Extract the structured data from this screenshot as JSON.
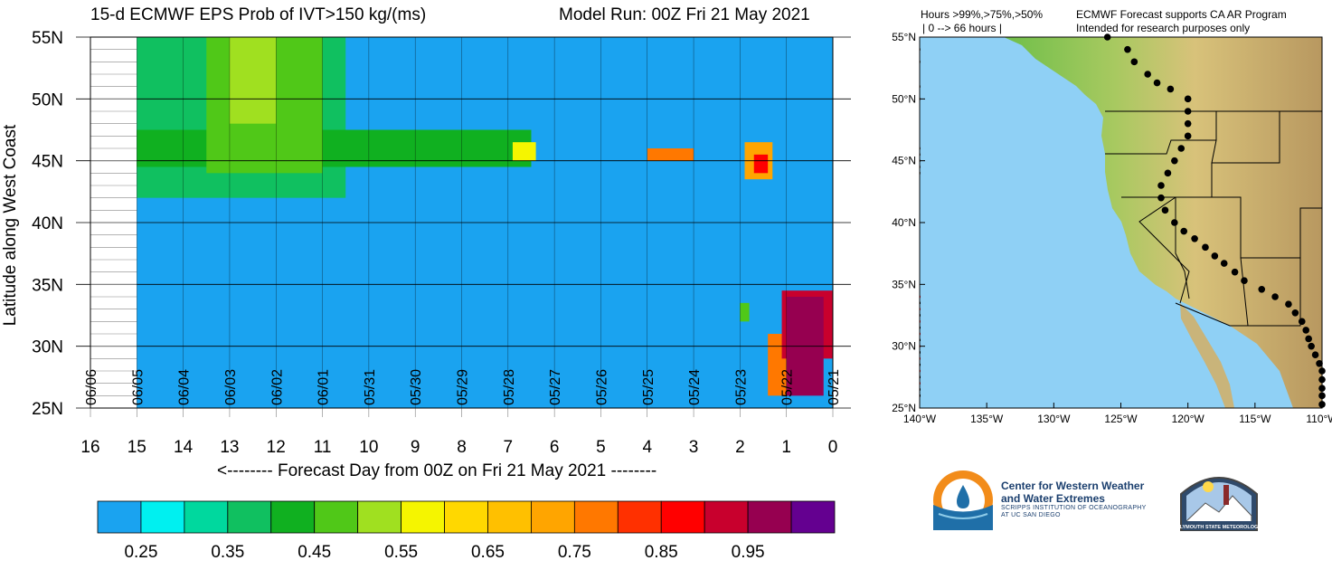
{
  "header": {
    "left_title": "15-d ECMWF EPS Prob of IVT>150 kg/(ms)",
    "right_title": "Model Run: 00Z Fri 21 May 2021"
  },
  "chart_data": [
    {
      "type": "heatmap",
      "title": "15-d ECMWF EPS Prob of IVT>150 kg/(ms)",
      "xlabel": "<-------- Forecast Day from 00Z on Fri 21 May 2021 --------",
      "ylabel": "Latitude along West Coast",
      "xlim": [
        16,
        0
      ],
      "ylim": [
        25,
        55
      ],
      "x_ticks": [
        "16",
        "15",
        "14",
        "13",
        "12",
        "11",
        "10",
        "9",
        "8",
        "7",
        "6",
        "5",
        "4",
        "3",
        "2",
        "1",
        "0"
      ],
      "y_ticks": [
        "25N",
        "30N",
        "35N",
        "40N",
        "45N",
        "50N",
        "55N"
      ],
      "date_labels": [
        {
          "day": 0,
          "label": "05/21"
        },
        {
          "day": 1,
          "label": "05/22"
        },
        {
          "day": 2,
          "label": "05/23"
        },
        {
          "day": 3,
          "label": "05/24"
        },
        {
          "day": 4,
          "label": "05/25"
        },
        {
          "day": 5,
          "label": "05/26"
        },
        {
          "day": 6,
          "label": "05/27"
        },
        {
          "day": 7,
          "label": "05/28"
        },
        {
          "day": 8,
          "label": "05/29"
        },
        {
          "day": 9,
          "label": "05/30"
        },
        {
          "day": 10,
          "label": "05/31"
        },
        {
          "day": 11,
          "label": "06/01"
        },
        {
          "day": 12,
          "label": "06/02"
        },
        {
          "day": 13,
          "label": "06/03"
        },
        {
          "day": 14,
          "label": "06/04"
        },
        {
          "day": 15,
          "label": "06/05"
        },
        {
          "day": 16,
          "label": "06/06"
        }
      ],
      "data_extent_days": [
        0,
        15
      ],
      "background_prob": 0.2,
      "regions": [
        {
          "day_min": 10.5,
          "day_max": 15.0,
          "lat_min": 42.0,
          "lat_max": 55.0,
          "prob": 0.35
        },
        {
          "day_min": 6.5,
          "day_max": 15.0,
          "lat_min": 44.5,
          "lat_max": 47.5,
          "prob": 0.4
        },
        {
          "day_min": 11.0,
          "day_max": 13.5,
          "lat_min": 44.0,
          "lat_max": 55.0,
          "prob": 0.45
        },
        {
          "day_min": 12.0,
          "day_max": 13.0,
          "lat_min": 48.0,
          "lat_max": 55.0,
          "prob": 0.5
        },
        {
          "day_min": 6.4,
          "day_max": 6.9,
          "lat_min": 45.0,
          "lat_max": 46.5,
          "prob": 0.55
        },
        {
          "day_min": 3.0,
          "day_max": 4.0,
          "lat_min": 45.0,
          "lat_max": 46.0,
          "prob": 0.75
        },
        {
          "day_min": 1.3,
          "day_max": 1.9,
          "lat_min": 43.5,
          "lat_max": 46.5,
          "prob": 0.7
        },
        {
          "day_min": 1.4,
          "day_max": 1.7,
          "lat_min": 44.0,
          "lat_max": 45.5,
          "prob": 0.85
        },
        {
          "day_min": 1.8,
          "day_max": 2.0,
          "lat_min": 32.0,
          "lat_max": 33.5,
          "prob": 0.45
        },
        {
          "day_min": 1.0,
          "day_max": 1.4,
          "lat_min": 26.0,
          "lat_max": 31.0,
          "prob": 0.75
        },
        {
          "day_min": 0.0,
          "day_max": 1.1,
          "lat_min": 29.0,
          "lat_max": 34.5,
          "prob": 0.9
        },
        {
          "day_min": 0.2,
          "day_max": 1.0,
          "lat_min": 26.0,
          "lat_max": 34.0,
          "prob": 0.97
        }
      ]
    },
    {
      "type": "bar",
      "title": "Hours >99%,>75%,>50%",
      "subtitle": "0 --> 66 hours",
      "xlim": [
        140,
        110
      ],
      "ylim": [
        25,
        55
      ],
      "x_ticks": [
        "140°W",
        "135°W",
        "130°W",
        "125°W",
        "120°W",
        "115°W",
        "110°W"
      ],
      "y_ticks": [
        "25°N",
        "30°N",
        "35°N",
        "40°N",
        "45°N",
        "50°N",
        "55°N"
      ],
      "series": [
        {
          "name": ">99%",
          "color": "#d11f2d",
          "values": [
            [
              26.0,
              0
            ],
            [
              27.0,
              0
            ],
            [
              28.0,
              0
            ],
            [
              29.0,
              0
            ],
            [
              30.0,
              0
            ],
            [
              31.0,
              0
            ],
            [
              32.0,
              0
            ],
            [
              33.0,
              0
            ],
            [
              34.0,
              0
            ]
          ]
        },
        {
          "name": ">75%",
          "color": "#000000",
          "values": [
            [
              26.0,
              0
            ],
            [
              26.5,
              0
            ],
            [
              27.5,
              0
            ],
            [
              28.5,
              0
            ],
            [
              29.5,
              0
            ],
            [
              30.5,
              0
            ],
            [
              31.5,
              0
            ],
            [
              32.5,
              0
            ],
            [
              33.5,
              0
            ]
          ]
        },
        {
          "name": ">50%",
          "color": "#555555",
          "values": [
            [
              44.0,
              0
            ],
            [
              44.5,
              0
            ],
            [
              45.0,
              0
            ],
            [
              45.5,
              0
            ],
            [
              46.0,
              0
            ],
            [
              50.0,
              0
            ],
            [
              51.0,
              0
            ],
            [
              53.0,
              0
            ],
            [
              54.0,
              0
            ]
          ]
        }
      ]
    }
  ],
  "colorbar": {
    "colors": [
      "#1aa3f0",
      "#00f0f0",
      "#00d89e",
      "#10c060",
      "#10b020",
      "#50c818",
      "#a0e020",
      "#f5f500",
      "#ffd800",
      "#ffc000",
      "#ffa500",
      "#ff7800",
      "#ff3000",
      "#ff0000",
      "#c8002d",
      "#960050",
      "#640090"
    ],
    "labels": [
      "0.25",
      "0.35",
      "0.45",
      "0.55",
      "0.65",
      "0.75",
      "0.85",
      "0.95"
    ]
  },
  "map": {
    "header_left_1": "Hours >99%,>75%,>50%",
    "header_left_2": "| 0 --> 66 hours              |",
    "header_right_1": "ECMWF Forecast supports CA AR Program",
    "header_right_2": "Intended for research purposes only",
    "x_ticks": [
      "140°W",
      "135°W",
      "130°W",
      "125°W",
      "120°W",
      "115°W",
      "110°W"
    ],
    "y_ticks": [
      "25°N",
      "30°N",
      "35°N",
      "40°N",
      "45°N",
      "50°N",
      "55°N"
    ]
  },
  "logos": {
    "cw3e_line1": "Center for Western Weather",
    "cw3e_line2": "and Water Extremes",
    "cw3e_sub1": "SCRIPPS INSTITUTION OF OCEANOGRAPHY",
    "cw3e_sub2": "AT UC SAN DIEGO",
    "psu_text": "PLYMOUTH STATE METEOROLOGY"
  }
}
